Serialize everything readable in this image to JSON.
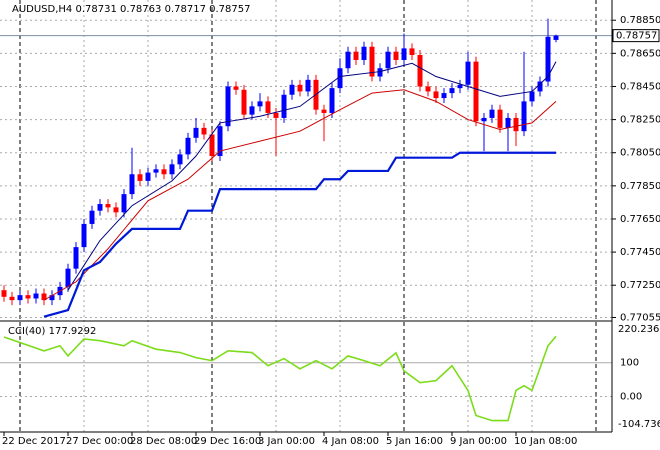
{
  "chart_data": {
    "type": "candlestick",
    "symbol": "AUDUSD,H4",
    "categories": [
      "22 Dec 2017",
      null,
      null,
      null,
      null,
      null,
      null,
      null,
      "27 Dec 00:00",
      null,
      null,
      null,
      null,
      null,
      null,
      null,
      "28 Dec 08:00",
      null,
      null,
      null,
      null,
      null,
      null,
      null,
      "29 Dec 16:00",
      null,
      null,
      null,
      null,
      null,
      null,
      null,
      "3 Jan 00:00",
      null,
      null,
      null,
      null,
      null,
      null,
      null,
      "4 Jan 08:00",
      null,
      null,
      null,
      null,
      null,
      null,
      null,
      "5 Jan 16:00",
      null,
      null,
      null,
      null,
      null,
      null,
      null,
      "9 Jan 00:00",
      null,
      null,
      null,
      null,
      null,
      null,
      null,
      "10 Jan 08:00",
      null,
      null,
      null,
      null,
      null
    ],
    "open": [
      0.7722,
      0.7718,
      0.7716,
      0.7719,
      0.7717,
      0.772,
      0.7716,
      0.7719,
      0.7724,
      0.7735,
      0.7748,
      0.7762,
      0.777,
      0.7774,
      0.7772,
      0.7769,
      0.778,
      0.7792,
      0.7788,
      0.7793,
      0.7795,
      0.7792,
      0.7798,
      0.7804,
      0.7814,
      0.782,
      0.7816,
      0.7803,
      0.7821,
      0.7845,
      0.7843,
      0.7828,
      0.7833,
      0.7836,
      0.7829,
      0.7826,
      0.784,
      0.7846,
      0.7842,
      0.7849,
      0.7831,
      0.7829,
      0.7844,
      0.7856,
      0.7866,
      0.7861,
      0.7869,
      0.7851,
      0.7856,
      0.7866,
      0.7861,
      0.7868,
      0.7864,
      0.7845,
      0.7842,
      0.7838,
      0.7841,
      0.7844,
      0.7846,
      0.786,
      0.7824,
      0.7826,
      0.7831,
      0.782,
      0.7826,
      0.7818,
      0.7836,
      0.7842,
      0.7848,
      0.78731
    ],
    "high": [
      0.7725,
      0.7721,
      0.7722,
      0.7722,
      0.7723,
      0.7723,
      0.7722,
      0.7727,
      0.7738,
      0.7751,
      0.7765,
      0.7773,
      0.7777,
      0.7777,
      0.7775,
      0.7783,
      0.7808,
      0.7795,
      0.7796,
      0.7798,
      0.7798,
      0.7801,
      0.7807,
      0.7817,
      0.7826,
      0.7823,
      0.7819,
      0.7824,
      0.7848,
      0.7848,
      0.7846,
      0.7836,
      0.7841,
      0.7839,
      0.7832,
      0.7843,
      0.7849,
      0.7849,
      0.7852,
      0.7852,
      0.7834,
      0.7847,
      0.7862,
      0.7869,
      0.7869,
      0.7872,
      0.7872,
      0.7859,
      0.7869,
      0.7869,
      0.7877,
      0.7871,
      0.7867,
      0.7848,
      0.7845,
      0.7844,
      0.7847,
      0.7849,
      0.7866,
      0.7863,
      0.7829,
      0.7834,
      0.7834,
      0.7829,
      0.7829,
      0.7866,
      0.7845,
      0.7851,
      0.7886,
      0.78763
    ],
    "low": [
      0.7715,
      0.7713,
      0.7713,
      0.7714,
      0.7714,
      0.7713,
      0.7713,
      0.7716,
      0.7721,
      0.7732,
      0.7745,
      0.7759,
      0.7767,
      0.7769,
      0.7766,
      0.7766,
      0.7777,
      0.7785,
      0.7785,
      0.779,
      0.7789,
      0.7789,
      0.7795,
      0.7801,
      0.7811,
      0.7813,
      0.78,
      0.78,
      0.7818,
      0.784,
      0.7825,
      0.7825,
      0.783,
      0.7826,
      0.7803,
      0.7823,
      0.7837,
      0.7839,
      0.7839,
      0.7828,
      0.7812,
      0.7826,
      0.7841,
      0.7853,
      0.7858,
      0.7858,
      0.7848,
      0.7848,
      0.7853,
      0.7858,
      0.7858,
      0.7861,
      0.7842,
      0.7839,
      0.7835,
      0.7835,
      0.7838,
      0.7841,
      0.7843,
      0.7821,
      0.7806,
      0.7823,
      0.7817,
      0.7806,
      0.7809,
      0.7815,
      0.7833,
      0.7839,
      0.7845,
      0.78717
    ],
    "close": [
      0.7718,
      0.7716,
      0.7719,
      0.7717,
      0.772,
      0.7716,
      0.7719,
      0.7724,
      0.7735,
      0.7748,
      0.7762,
      0.777,
      0.7774,
      0.7772,
      0.7769,
      0.778,
      0.7792,
      0.7788,
      0.7793,
      0.7795,
      0.7792,
      0.7798,
      0.7804,
      0.7814,
      0.782,
      0.7816,
      0.7803,
      0.7821,
      0.7845,
      0.7843,
      0.7828,
      0.7833,
      0.7836,
      0.7829,
      0.7826,
      0.784,
      0.7846,
      0.7842,
      0.7849,
      0.7831,
      0.7829,
      0.7844,
      0.7856,
      0.7866,
      0.7861,
      0.7869,
      0.7851,
      0.7856,
      0.7866,
      0.7861,
      0.7868,
      0.7864,
      0.7845,
      0.7842,
      0.7838,
      0.7841,
      0.7844,
      0.7846,
      0.786,
      0.7824,
      0.7826,
      0.7831,
      0.782,
      0.7826,
      0.7818,
      0.7836,
      0.7842,
      0.7848,
      0.7875,
      0.78757
    ],
    "up_color": "#0000ff",
    "down_color": "#ff0000",
    "ylim": [
      0.7704,
      0.7896
    ],
    "yticks": [
      {
        "value": 0.7885,
        "label": "0.78850"
      },
      {
        "value": 0.7865,
        "label": "0.78650"
      },
      {
        "value": 0.7845,
        "label": "0.78450"
      },
      {
        "value": 0.7825,
        "label": "0.78250"
      },
      {
        "value": 0.7805,
        "label": "0.78050"
      },
      {
        "value": 0.7785,
        "label": "0.77850"
      },
      {
        "value": 0.7765,
        "label": "0.77650"
      },
      {
        "value": 0.7745,
        "label": "0.77450"
      },
      {
        "value": 0.7725,
        "label": "0.77250"
      },
      {
        "value": 0.77055,
        "label": "0.77055"
      }
    ],
    "grid": true,
    "lines": [
      {
        "color": "#000080",
        "width": 1,
        "x": [
          8,
          12,
          16,
          21,
          24,
          27,
          32,
          37,
          42,
          47,
          51,
          54,
          58,
          62,
          66,
          68,
          69
        ],
        "values": [
          0.7722,
          0.7752,
          0.7773,
          0.7788,
          0.7803,
          0.7823,
          0.7827,
          0.7833,
          0.7851,
          0.7854,
          0.7859,
          0.7851,
          0.7845,
          0.7839,
          0.7842,
          0.7851,
          0.786
        ]
      },
      {
        "color": "#cc0000",
        "width": 1,
        "x": [
          5,
          9,
          13,
          18,
          23,
          27,
          32,
          37,
          42,
          46,
          50,
          54,
          58,
          62,
          66,
          69
        ],
        "values": [
          0.7716,
          0.7727,
          0.7747,
          0.7776,
          0.7789,
          0.7806,
          0.7812,
          0.7818,
          0.7831,
          0.7841,
          0.7843,
          0.7836,
          0.7825,
          0.7819,
          0.7823,
          0.7836
        ]
      },
      {
        "color": "#0018d8",
        "width": 2.2,
        "x": [
          5,
          8,
          10,
          12,
          14,
          16,
          22,
          23,
          26,
          27,
          39,
          40,
          42,
          43,
          48,
          49,
          56,
          57,
          69
        ],
        "values": [
          0.7706,
          0.771,
          0.7734,
          0.7739,
          0.775,
          0.7759,
          0.7759,
          0.777,
          0.777,
          0.7783,
          0.7783,
          0.7789,
          0.7789,
          0.7794,
          0.7794,
          0.7802,
          0.7802,
          0.7805,
          0.7805
        ]
      }
    ],
    "cci": {
      "label": "CCI(40)",
      "color": "#7cdc1c",
      "x": [
        0,
        5,
        7,
        8,
        10,
        12,
        15,
        16,
        19,
        22,
        24,
        26,
        28,
        31,
        33,
        35,
        37,
        39,
        41,
        43,
        45,
        47,
        49,
        50,
        52,
        54,
        56,
        58,
        59,
        61,
        63,
        64,
        65,
        66,
        68,
        69
      ],
      "values": [
        176,
        135,
        150,
        120,
        170,
        165,
        150,
        165,
        140,
        130,
        115,
        106,
        135,
        130,
        91,
        112,
        82,
        106,
        82,
        120,
        106,
        91,
        129,
        76,
        41,
        47,
        91,
        18,
        -56,
        -71,
        -71,
        18,
        32,
        18,
        150,
        177.9292
      ],
      "ylim": [
        -104.7365,
        220.2366
      ],
      "yticks": [
        100,
        {
          "value": 0,
          "label": "0.00"
        }
      ]
    }
  }
}
